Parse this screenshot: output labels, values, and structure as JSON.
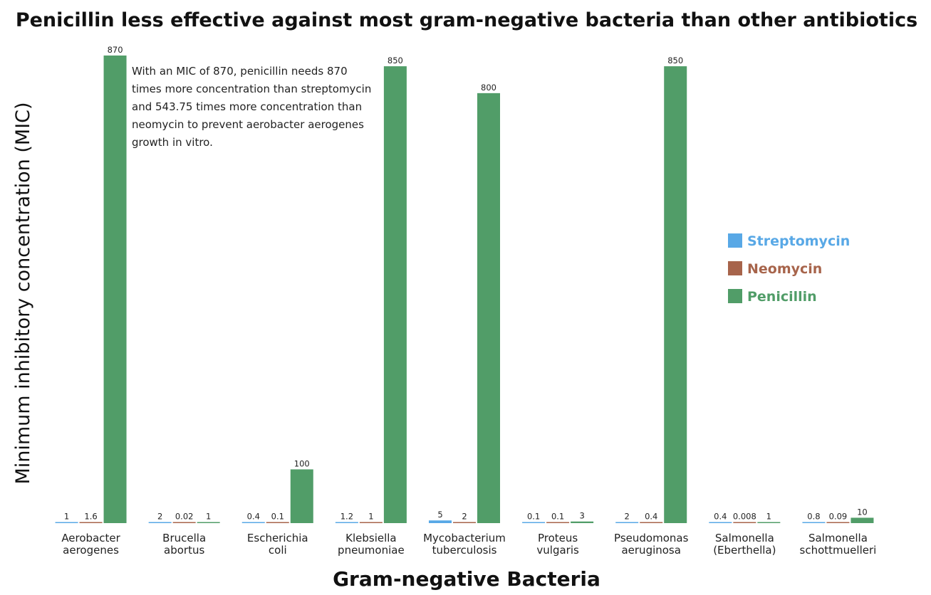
{
  "chart_data": {
    "type": "bar",
    "title": "Penicillin less effective against most gram-negative bacteria than other antibiotics",
    "xlabel": "Gram-negative Bacteria",
    "ylabel": "Minimum inhibitory concentration (MIC)",
    "ylim": [
      0,
      870
    ],
    "grid": false,
    "legend_position": "right",
    "categories": [
      [
        "Aerobacter",
        "aerogenes"
      ],
      [
        "Brucella",
        "abortus"
      ],
      [
        "Escherichia",
        "coli"
      ],
      [
        "Klebsiella",
        "pneumoniae"
      ],
      [
        "Mycobacterium",
        "tuberculosis"
      ],
      [
        "Proteus",
        "vulgaris"
      ],
      [
        "Pseudomonas",
        "aeruginosa"
      ],
      [
        "Salmonella",
        "(Eberthella)"
      ],
      [
        "Salmonella",
        "schottmuelleri"
      ]
    ],
    "series": [
      {
        "name": "Streptomycin",
        "color": "#58a8e6",
        "values": [
          1,
          2,
          0.4,
          1.2,
          5,
          0.1,
          2,
          0.4,
          0.8
        ],
        "labels": [
          "1",
          "2",
          "0.4",
          "1.2",
          "5",
          "0.1",
          "2",
          "0.4",
          "0.8"
        ]
      },
      {
        "name": "Neomycin",
        "color": "#a7644b",
        "values": [
          1.6,
          0.02,
          0.1,
          1,
          2,
          0.1,
          0.4,
          0.008,
          0.09
        ],
        "labels": [
          "1.6",
          "0.02",
          "0.1",
          "1",
          "2",
          "0.1",
          "0.4",
          "0.008",
          "0.09"
        ]
      },
      {
        "name": "Penicillin",
        "color": "#519d68",
        "values": [
          870,
          1,
          100,
          850,
          800,
          3,
          850,
          1,
          10
        ],
        "labels": [
          "870",
          "1",
          "100",
          "850",
          "800",
          "3",
          "850",
          "1",
          "10"
        ]
      }
    ],
    "annotation": [
      "With an MIC of 870, penicillin needs 870",
      "times more concentration than streptomycin",
      "and 543.75 times more concentration than",
      "neomycin to prevent aerobacter aerogenes",
      "growth in vitro."
    ]
  }
}
